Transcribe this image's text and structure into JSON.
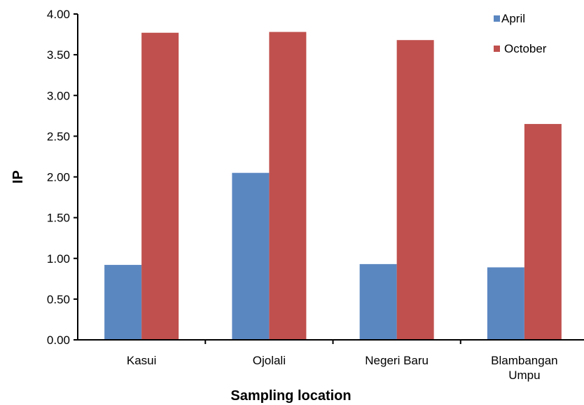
{
  "chart_data": {
    "type": "bar",
    "title": "",
    "xlabel": "Sampling location",
    "ylabel": "IP",
    "ylim": [
      0,
      4
    ],
    "yticks": [
      "0.00",
      "0.50",
      "1.00",
      "1.50",
      "2.00",
      "2.50",
      "3.00",
      "3.50",
      "4.00"
    ],
    "categories": [
      "Kasui",
      "Ojolali",
      "Negeri Baru",
      "Blambangan Umpu"
    ],
    "category_lines": [
      [
        "Kasui"
      ],
      [
        "Ojolali"
      ],
      [
        "Negeri Baru"
      ],
      [
        "Blambangan",
        "Umpu"
      ]
    ],
    "series": [
      {
        "name": "April",
        "color": "#5b87c1",
        "values": [
          0.92,
          2.05,
          0.93,
          0.89
        ]
      },
      {
        "name": "October",
        "color": "#c0504d",
        "values": [
          3.77,
          3.78,
          3.68,
          2.65
        ]
      }
    ],
    "legend_position": "top-right",
    "grid": false
  }
}
